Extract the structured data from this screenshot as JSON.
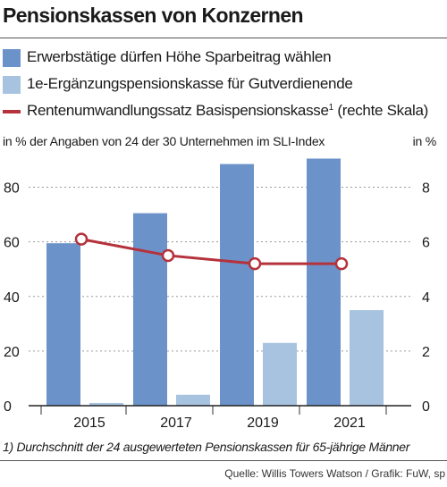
{
  "title": "Pensionskassen von Konzernen",
  "legend": [
    {
      "label": "Erwerbstätige dürfen Höhe Sparbeitrag wählen",
      "kind": "bar"
    },
    {
      "label": "1e-Ergänzungspensionskasse für Gutverdienende",
      "kind": "bar"
    },
    {
      "label": "Rentenumwandlungssatz Basispensionskasse",
      "sup": "1",
      "suffix": " (rechte Skala)",
      "kind": "line"
    }
  ],
  "left_unit": "in % der Angaben von 24 der 30 Unternehmen im SLI-Index",
  "right_unit": "in %",
  "footnote": "1) Durchschnitt der 24 ausgewerteten Pensionskassen für 65-jährige Männer",
  "source": "Quelle: Willis Towers Watson / Grafik: FuW, sp",
  "colors": {
    "bar1": "#6b93c9",
    "bar2": "#a7c3e0",
    "line": "#b5323c",
    "grid": "#9a9a9a"
  },
  "chart_data": {
    "type": "bar",
    "categories": [
      "2015",
      "2017",
      "2019",
      "2021"
    ],
    "series": [
      {
        "name": "Erwerbstätige dürfen Höhe Sparbeitrag wählen",
        "type": "bar",
        "axis": "left",
        "values": [
          59.5,
          70.5,
          88.5,
          90.5
        ]
      },
      {
        "name": "1e-Ergänzungspensionskasse für Gutverdienende",
        "type": "bar",
        "axis": "left",
        "values": [
          1,
          4,
          23,
          35
        ]
      },
      {
        "name": "Rentenumwandlungssatz Basispensionskasse",
        "type": "line",
        "axis": "right",
        "values": [
          6.1,
          5.5,
          5.2,
          5.2
        ]
      }
    ],
    "left_ylim": [
      0,
      90
    ],
    "left_ticks": [
      0,
      20,
      40,
      60,
      80
    ],
    "right_ylim": [
      0,
      9
    ],
    "right_ticks": [
      0,
      2,
      4,
      6,
      8
    ],
    "grid": true
  }
}
